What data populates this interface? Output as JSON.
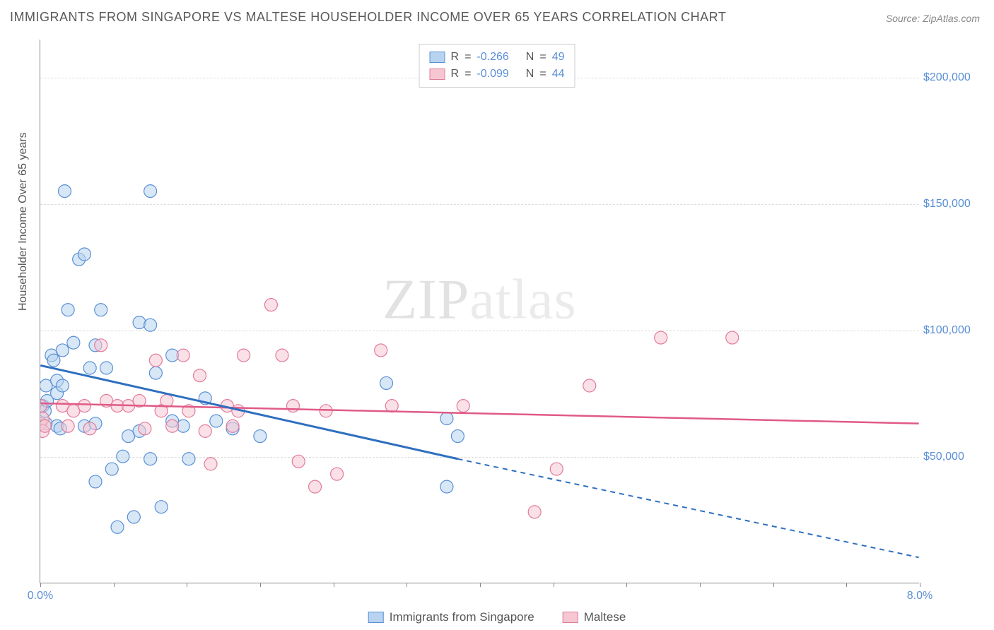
{
  "title": "IMMIGRANTS FROM SINGAPORE VS MALTESE HOUSEHOLDER INCOME OVER 65 YEARS CORRELATION CHART",
  "source": "Source: ZipAtlas.com",
  "y_axis_label": "Householder Income Over 65 years",
  "watermark": {
    "bold": "ZIP",
    "light": "atlas"
  },
  "xlim": [
    0.0,
    8.0
  ],
  "ylim": [
    0,
    215000
  ],
  "x_ticks": [
    0.0,
    0.67,
    1.33,
    2.0,
    2.67,
    3.33,
    4.0,
    4.67,
    5.33,
    6.0,
    6.67,
    7.33,
    8.0
  ],
  "x_tick_labels": {
    "0": "0.0%",
    "8": "8.0%"
  },
  "y_gridlines": [
    50000,
    100000,
    150000,
    200000
  ],
  "y_tick_labels": {
    "50000": "$50,000",
    "100000": "$100,000",
    "150000": "$150,000",
    "200000": "$200,000"
  },
  "series_a": {
    "name": "Immigrants from Singapore",
    "color_fill": "#b7d3ef",
    "color_stroke": "#5a8fd6",
    "line_color": "#2f6fc0",
    "R": "-0.266",
    "N": "49",
    "regression": {
      "x1": 0.0,
      "y1": 86000,
      "x2_solid": 3.8,
      "y2_solid": 49000,
      "x2_dash": 8.0,
      "y2_dash": 10000
    },
    "marker_r": 9,
    "points": [
      [
        0.02,
        70000
      ],
      [
        0.04,
        68000
      ],
      [
        0.05,
        78000
      ],
      [
        0.05,
        63000
      ],
      [
        0.06,
        72000
      ],
      [
        0.1,
        90000
      ],
      [
        0.12,
        88000
      ],
      [
        0.15,
        80000
      ],
      [
        0.15,
        75000
      ],
      [
        0.15,
        62000
      ],
      [
        0.18,
        61000
      ],
      [
        0.2,
        78000
      ],
      [
        0.2,
        92000
      ],
      [
        0.22,
        155000
      ],
      [
        0.25,
        108000
      ],
      [
        0.3,
        95000
      ],
      [
        0.35,
        128000
      ],
      [
        0.4,
        130000
      ],
      [
        0.4,
        62000
      ],
      [
        0.45,
        85000
      ],
      [
        0.5,
        94000
      ],
      [
        0.5,
        63000
      ],
      [
        0.5,
        40000
      ],
      [
        0.55,
        108000
      ],
      [
        0.6,
        85000
      ],
      [
        0.65,
        45000
      ],
      [
        0.7,
        22000
      ],
      [
        0.75,
        50000
      ],
      [
        0.8,
        58000
      ],
      [
        0.85,
        26000
      ],
      [
        0.9,
        103000
      ],
      [
        0.9,
        60000
      ],
      [
        1.0,
        155000
      ],
      [
        1.0,
        102000
      ],
      [
        1.0,
        49000
      ],
      [
        1.05,
        83000
      ],
      [
        1.1,
        30000
      ],
      [
        1.2,
        90000
      ],
      [
        1.2,
        64000
      ],
      [
        1.3,
        62000
      ],
      [
        1.35,
        49000
      ],
      [
        1.5,
        73000
      ],
      [
        1.6,
        64000
      ],
      [
        1.75,
        61000
      ],
      [
        2.0,
        58000
      ],
      [
        3.15,
        79000
      ],
      [
        3.7,
        65000
      ],
      [
        3.7,
        38000
      ],
      [
        3.8,
        58000
      ]
    ]
  },
  "series_b": {
    "name": "Maltese",
    "color_fill": "#f6c7d3",
    "color_stroke": "#e27a9a",
    "line_color": "#e05a87",
    "R": "-0.099",
    "N": "44",
    "regression": {
      "x1": 0.0,
      "y1": 71000,
      "x2": 8.0,
      "y2": 63000
    },
    "marker_r": 9,
    "points": [
      [
        0.0,
        63000
      ],
      [
        0.0,
        70000
      ],
      [
        0.02,
        65000
      ],
      [
        0.02,
        60000
      ],
      [
        0.04,
        62000
      ],
      [
        0.2,
        70000
      ],
      [
        0.25,
        62000
      ],
      [
        0.3,
        68000
      ],
      [
        0.4,
        70000
      ],
      [
        0.45,
        61000
      ],
      [
        0.55,
        94000
      ],
      [
        0.6,
        72000
      ],
      [
        0.7,
        70000
      ],
      [
        0.8,
        70000
      ],
      [
        0.9,
        72000
      ],
      [
        0.95,
        61000
      ],
      [
        1.05,
        88000
      ],
      [
        1.1,
        68000
      ],
      [
        1.15,
        72000
      ],
      [
        1.2,
        62000
      ],
      [
        1.3,
        90000
      ],
      [
        1.35,
        68000
      ],
      [
        1.45,
        82000
      ],
      [
        1.5,
        60000
      ],
      [
        1.55,
        47000
      ],
      [
        1.7,
        70000
      ],
      [
        1.75,
        62000
      ],
      [
        1.8,
        68000
      ],
      [
        1.85,
        90000
      ],
      [
        2.1,
        110000
      ],
      [
        2.2,
        90000
      ],
      [
        2.3,
        70000
      ],
      [
        2.35,
        48000
      ],
      [
        2.5,
        38000
      ],
      [
        2.6,
        68000
      ],
      [
        2.7,
        43000
      ],
      [
        3.1,
        92000
      ],
      [
        3.2,
        70000
      ],
      [
        3.85,
        70000
      ],
      [
        4.5,
        28000
      ],
      [
        4.7,
        45000
      ],
      [
        5.0,
        78000
      ],
      [
        5.65,
        97000
      ],
      [
        6.3,
        97000
      ]
    ]
  },
  "legend_bottom": {
    "a": "Immigrants from Singapore",
    "b": "Maltese"
  },
  "legend_top_labels": {
    "R": "R",
    "N": "N"
  },
  "background_color": "#ffffff",
  "grid_color": "#dddddd",
  "axis_color": "#888888",
  "text_color": "#555555",
  "value_color": "#5a8fd6",
  "title_fontsize": 18,
  "label_fontsize": 16
}
